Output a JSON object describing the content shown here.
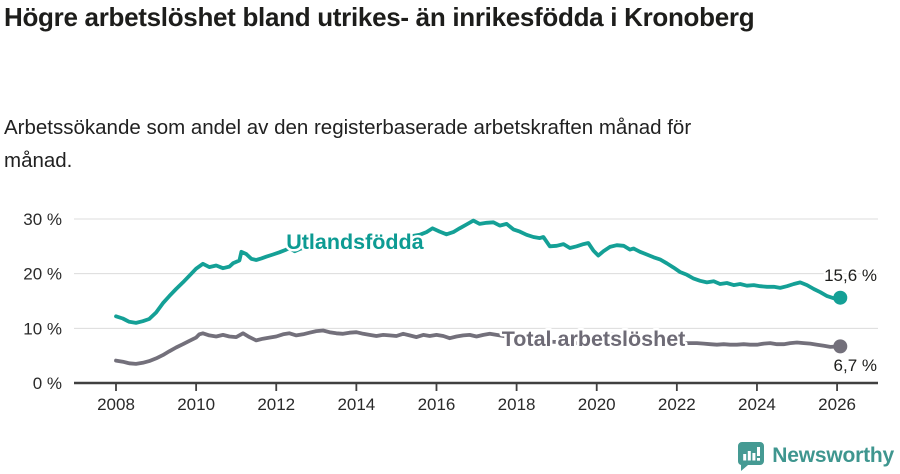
{
  "header": {
    "title": "Högre arbetslöshet bland utrikes- än inrikesfödda i Kronoberg",
    "subtitle": "Arbetssökande som andel av den registerbaserade arbetskraften månad för månad."
  },
  "footer": {
    "brand": "Newsworthy"
  },
  "colors": {
    "teal": "#14a096",
    "teal_label": "#0d9b93",
    "gray": "#73707b",
    "gray_label": "#6e6b76",
    "grid": "#dcdcdc",
    "axis": "#404040",
    "tick_text": "#2a2a2a",
    "value_text": "#1d1d1b",
    "logo_teal": "#459a93"
  },
  "chart_data": {
    "type": "line",
    "title": "Högre arbetslöshet bland utrikes- än inrikesfödda i Kronoberg",
    "subtitle": "Arbetssökande som andel av den registerbaserade arbetskraften månad för månad.",
    "xlabel": "",
    "ylabel": "",
    "xlim": [
      2007.0,
      2027.0
    ],
    "ylim": [
      0,
      32
    ],
    "grid": "horizontal",
    "legend_position": "inline-labels",
    "x_ticks": [
      {
        "v": 2008,
        "label": "2008"
      },
      {
        "v": 2010,
        "label": "2010"
      },
      {
        "v": 2012,
        "label": "2012"
      },
      {
        "v": 2014,
        "label": "2014"
      },
      {
        "v": 2016,
        "label": "2016"
      },
      {
        "v": 2018,
        "label": "2018"
      },
      {
        "v": 2020,
        "label": "2020"
      },
      {
        "v": 2022,
        "label": "2022"
      },
      {
        "v": 2024,
        "label": "2024"
      },
      {
        "v": 2026,
        "label": "2026"
      }
    ],
    "y_ticks": [
      {
        "v": 0,
        "label": "0 %"
      },
      {
        "v": 10,
        "label": "10 %"
      },
      {
        "v": 20,
        "label": "20 %"
      },
      {
        "v": 30,
        "label": "30 %"
      }
    ],
    "series": [
      {
        "name": "Utlandsfödda",
        "inline_label": "Utlandsfödda",
        "inline_label_anchor": {
          "year": 2012.25,
          "value": 24.5
        },
        "end_label": "15,6 %",
        "end_value": 15.6,
        "points": [
          [
            2008.0,
            12.2
          ],
          [
            2008.17,
            11.8
          ],
          [
            2008.33,
            11.2
          ],
          [
            2008.5,
            11.0
          ],
          [
            2008.67,
            11.3
          ],
          [
            2008.83,
            11.7
          ],
          [
            2009.0,
            12.9
          ],
          [
            2009.17,
            14.6
          ],
          [
            2009.33,
            15.9
          ],
          [
            2009.5,
            17.2
          ],
          [
            2009.67,
            18.4
          ],
          [
            2009.83,
            19.6
          ],
          [
            2010.0,
            20.9
          ],
          [
            2010.17,
            21.8
          ],
          [
            2010.33,
            21.2
          ],
          [
            2010.5,
            21.5
          ],
          [
            2010.67,
            21.0
          ],
          [
            2010.83,
            21.3
          ],
          [
            2010.92,
            21.9
          ],
          [
            2011.08,
            22.4
          ],
          [
            2011.13,
            24.0
          ],
          [
            2011.25,
            23.6
          ],
          [
            2011.38,
            22.7
          ],
          [
            2011.5,
            22.5
          ],
          [
            2011.63,
            22.8
          ],
          [
            2011.75,
            23.1
          ],
          [
            2011.92,
            23.5
          ],
          [
            2012.08,
            23.9
          ],
          [
            2012.25,
            24.4
          ],
          [
            2012.33,
            24.7
          ],
          [
            2012.46,
            24.1
          ],
          [
            2012.58,
            24.5
          ],
          [
            2012.75,
            24.9
          ],
          [
            2012.92,
            25.2
          ],
          [
            2013.08,
            25.0
          ],
          [
            2013.25,
            25.3
          ],
          [
            2013.42,
            25.1
          ],
          [
            2013.58,
            25.3
          ],
          [
            2013.75,
            25.5
          ],
          [
            2013.92,
            25.7
          ],
          [
            2014.08,
            25.8
          ],
          [
            2014.25,
            25.6
          ],
          [
            2014.42,
            25.9
          ],
          [
            2014.58,
            26.1
          ],
          [
            2014.75,
            26.3
          ],
          [
            2014.92,
            26.2
          ],
          [
            2015.08,
            26.4
          ],
          [
            2015.25,
            26.6
          ],
          [
            2015.42,
            26.9
          ],
          [
            2015.58,
            27.1
          ],
          [
            2015.75,
            27.6
          ],
          [
            2015.9,
            28.3
          ],
          [
            2016.08,
            27.7
          ],
          [
            2016.25,
            27.2
          ],
          [
            2016.42,
            27.6
          ],
          [
            2016.58,
            28.3
          ],
          [
            2016.75,
            29.0
          ],
          [
            2016.92,
            29.7
          ],
          [
            2017.08,
            29.1
          ],
          [
            2017.25,
            29.3
          ],
          [
            2017.42,
            29.4
          ],
          [
            2017.58,
            28.8
          ],
          [
            2017.75,
            29.1
          ],
          [
            2017.92,
            28.1
          ],
          [
            2018.08,
            27.7
          ],
          [
            2018.25,
            27.1
          ],
          [
            2018.42,
            26.7
          ],
          [
            2018.58,
            26.5
          ],
          [
            2018.67,
            26.7
          ],
          [
            2018.83,
            25.0
          ],
          [
            2019.0,
            25.1
          ],
          [
            2019.17,
            25.4
          ],
          [
            2019.33,
            24.7
          ],
          [
            2019.5,
            25.0
          ],
          [
            2019.67,
            25.4
          ],
          [
            2019.79,
            25.6
          ],
          [
            2019.92,
            24.2
          ],
          [
            2020.04,
            23.3
          ],
          [
            2020.17,
            24.1
          ],
          [
            2020.33,
            24.9
          ],
          [
            2020.5,
            25.2
          ],
          [
            2020.67,
            25.1
          ],
          [
            2020.83,
            24.4
          ],
          [
            2020.92,
            24.6
          ],
          [
            2021.08,
            24.0
          ],
          [
            2021.25,
            23.5
          ],
          [
            2021.42,
            23.0
          ],
          [
            2021.58,
            22.6
          ],
          [
            2021.75,
            21.9
          ],
          [
            2021.92,
            21.1
          ],
          [
            2022.08,
            20.3
          ],
          [
            2022.25,
            19.8
          ],
          [
            2022.42,
            19.1
          ],
          [
            2022.58,
            18.7
          ],
          [
            2022.75,
            18.4
          ],
          [
            2022.92,
            18.6
          ],
          [
            2023.08,
            18.1
          ],
          [
            2023.25,
            18.3
          ],
          [
            2023.42,
            17.9
          ],
          [
            2023.58,
            18.1
          ],
          [
            2023.75,
            17.8
          ],
          [
            2023.92,
            17.9
          ],
          [
            2024.08,
            17.7
          ],
          [
            2024.25,
            17.6
          ],
          [
            2024.42,
            17.6
          ],
          [
            2024.58,
            17.4
          ],
          [
            2024.75,
            17.7
          ],
          [
            2024.92,
            18.1
          ],
          [
            2025.08,
            18.4
          ],
          [
            2025.25,
            17.9
          ],
          [
            2025.42,
            17.2
          ],
          [
            2025.58,
            16.6
          ],
          [
            2025.75,
            15.9
          ],
          [
            2025.92,
            15.5
          ],
          [
            2026.08,
            15.6
          ]
        ]
      },
      {
        "name": "Total arbetslöshet",
        "inline_label": "Total arbetslöshet",
        "inline_label_anchor": {
          "year": 2017.63,
          "value": 6.8
        },
        "end_label": "6,7 %",
        "end_value": 6.7,
        "points": [
          [
            2008.0,
            4.1
          ],
          [
            2008.17,
            3.9
          ],
          [
            2008.33,
            3.6
          ],
          [
            2008.5,
            3.5
          ],
          [
            2008.67,
            3.7
          ],
          [
            2008.83,
            4.0
          ],
          [
            2009.0,
            4.5
          ],
          [
            2009.17,
            5.1
          ],
          [
            2009.33,
            5.8
          ],
          [
            2009.5,
            6.5
          ],
          [
            2009.67,
            7.1
          ],
          [
            2009.83,
            7.7
          ],
          [
            2010.0,
            8.3
          ],
          [
            2010.08,
            8.9
          ],
          [
            2010.17,
            9.1
          ],
          [
            2010.33,
            8.7
          ],
          [
            2010.5,
            8.5
          ],
          [
            2010.67,
            8.8
          ],
          [
            2010.83,
            8.5
          ],
          [
            2011.0,
            8.4
          ],
          [
            2011.17,
            9.1
          ],
          [
            2011.33,
            8.4
          ],
          [
            2011.5,
            7.8
          ],
          [
            2011.67,
            8.1
          ],
          [
            2011.83,
            8.3
          ],
          [
            2012.0,
            8.5
          ],
          [
            2012.17,
            8.9
          ],
          [
            2012.33,
            9.1
          ],
          [
            2012.5,
            8.7
          ],
          [
            2012.67,
            8.9
          ],
          [
            2012.83,
            9.2
          ],
          [
            2013.0,
            9.5
          ],
          [
            2013.17,
            9.6
          ],
          [
            2013.33,
            9.3
          ],
          [
            2013.5,
            9.1
          ],
          [
            2013.67,
            9.0
          ],
          [
            2013.83,
            9.2
          ],
          [
            2014.0,
            9.3
          ],
          [
            2014.17,
            9.0
          ],
          [
            2014.33,
            8.8
          ],
          [
            2014.5,
            8.6
          ],
          [
            2014.67,
            8.8
          ],
          [
            2014.83,
            8.7
          ],
          [
            2015.0,
            8.6
          ],
          [
            2015.17,
            9.0
          ],
          [
            2015.33,
            8.7
          ],
          [
            2015.5,
            8.4
          ],
          [
            2015.67,
            8.8
          ],
          [
            2015.83,
            8.6
          ],
          [
            2016.0,
            8.8
          ],
          [
            2016.17,
            8.6
          ],
          [
            2016.33,
            8.2
          ],
          [
            2016.5,
            8.5
          ],
          [
            2016.67,
            8.7
          ],
          [
            2016.83,
            8.8
          ],
          [
            2017.0,
            8.5
          ],
          [
            2017.17,
            8.8
          ],
          [
            2017.33,
            9.0
          ],
          [
            2017.5,
            8.8
          ],
          [
            2017.67,
            8.6
          ],
          [
            2017.83,
            8.4
          ],
          [
            2018.0,
            8.2
          ],
          [
            2018.25,
            8.0
          ],
          [
            2018.5,
            7.8
          ],
          [
            2018.75,
            7.6
          ],
          [
            2019.0,
            7.5
          ],
          [
            2019.25,
            7.4
          ],
          [
            2019.5,
            7.3
          ],
          [
            2019.75,
            7.4
          ],
          [
            2020.0,
            7.6
          ],
          [
            2020.25,
            8.6
          ],
          [
            2020.42,
            8.9
          ],
          [
            2020.58,
            8.8
          ],
          [
            2020.75,
            8.6
          ],
          [
            2021.0,
            8.4
          ],
          [
            2021.25,
            8.2
          ],
          [
            2021.5,
            7.9
          ],
          [
            2021.75,
            7.6
          ],
          [
            2022.0,
            7.4
          ],
          [
            2022.25,
            7.3
          ],
          [
            2022.5,
            7.3
          ],
          [
            2022.67,
            7.2
          ],
          [
            2022.83,
            7.1
          ],
          [
            2023.0,
            7.0
          ],
          [
            2023.17,
            7.1
          ],
          [
            2023.33,
            7.0
          ],
          [
            2023.5,
            7.0
          ],
          [
            2023.67,
            7.1
          ],
          [
            2023.83,
            7.0
          ],
          [
            2024.0,
            7.0
          ],
          [
            2024.17,
            7.2
          ],
          [
            2024.33,
            7.3
          ],
          [
            2024.5,
            7.1
          ],
          [
            2024.67,
            7.1
          ],
          [
            2024.83,
            7.3
          ],
          [
            2025.0,
            7.4
          ],
          [
            2025.17,
            7.3
          ],
          [
            2025.33,
            7.2
          ],
          [
            2025.5,
            7.0
          ],
          [
            2025.67,
            6.8
          ],
          [
            2025.83,
            6.6
          ],
          [
            2026.08,
            6.7
          ]
        ]
      }
    ]
  }
}
